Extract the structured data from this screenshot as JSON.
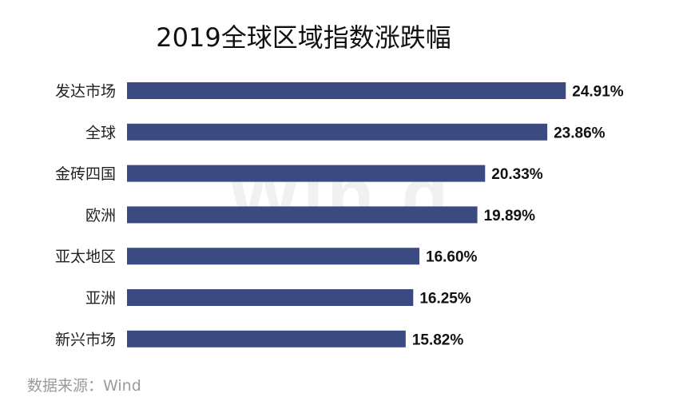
{
  "chart_data": {
    "type": "bar",
    "orientation": "horizontal",
    "title": "2019全球区域指数涨跌幅",
    "categories": [
      "发达市场",
      "全球",
      "金砖四国",
      "欧洲",
      "亚太地区",
      "亚洲",
      "新兴市场"
    ],
    "values": [
      24.91,
      23.86,
      20.33,
      19.89,
      16.6,
      16.25,
      15.82
    ],
    "data_labels": [
      "24.91%",
      "23.86%",
      "20.33%",
      "19.89%",
      "16.60%",
      "16.25%",
      "15.82%"
    ],
    "xlabel": "",
    "ylabel": "",
    "xlim": [
      0,
      25
    ],
    "grid": false,
    "bar_color": "#3b4a80",
    "source": "数据来源：Wind",
    "watermark": "Win.d"
  }
}
